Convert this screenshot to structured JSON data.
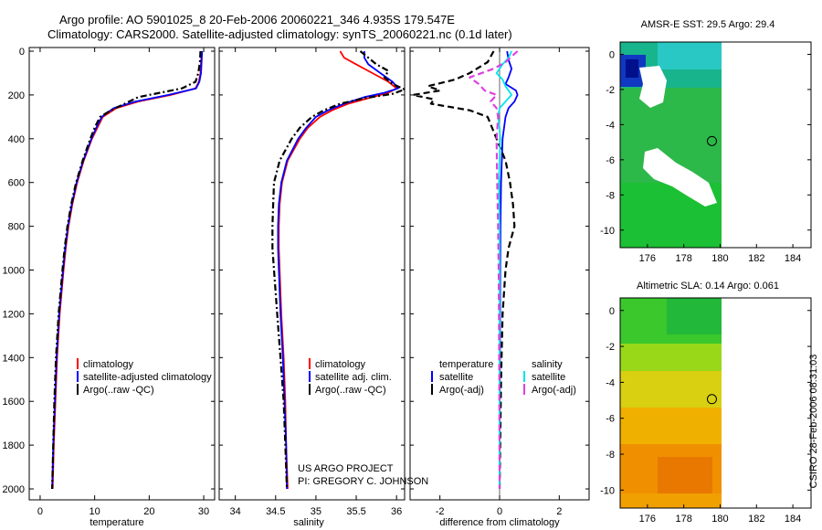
{
  "header": {
    "line1": "Argo profile: AO 5901025_8 20-Feb-2006 20060221_346 4.935S 179.547E",
    "line2": "Climatology: CARS2000. Satellite-adjusted climatology: synTS_20060221.nc (0.1d later)"
  },
  "credit": {
    "project": "US ARGO PROJECT",
    "pi": "PI: GREGORY C. JOHNSON",
    "stamp": "CSIRO 28-Feb-2006 08:31:03"
  },
  "colors": {
    "climatology": "#ff0000",
    "satellite": "#0000ff",
    "argo": "#000000",
    "sal_satellite": "#00e5ee",
    "sal_argo": "#e040e0"
  },
  "chart_data": [
    {
      "type": "line",
      "panel": "temperature",
      "xlabel": "temperature",
      "ylabel": "",
      "xlim": [
        -2,
        32
      ],
      "ylim": [
        2050,
        0
      ],
      "xticks": [
        0,
        10,
        20,
        30
      ],
      "yticks": [
        0,
        200,
        400,
        600,
        800,
        1000,
        1200,
        1400,
        1600,
        1800,
        2000
      ],
      "legend": [
        {
          "label": "climatology",
          "color": "#ff0000"
        },
        {
          "label": "satellite-adjusted climatology",
          "color": "#0000ff"
        },
        {
          "label": "Argo(..raw -QC)",
          "color": "#000000"
        }
      ],
      "series": [
        {
          "name": "climatology",
          "color": "#ff0000",
          "dash": "solid",
          "depth": [
            0,
            50,
            100,
            140,
            170,
            200,
            230,
            260,
            300,
            350,
            400,
            500,
            600,
            700,
            800,
            900,
            1000,
            1200,
            1400,
            1600,
            1800,
            2000
          ],
          "values": [
            29.6,
            29.5,
            29.4,
            29.1,
            28.5,
            24.0,
            18.0,
            14.0,
            11.5,
            10.5,
            9.5,
            8.0,
            6.8,
            5.9,
            5.2,
            4.7,
            4.3,
            3.6,
            3.1,
            2.8,
            2.5,
            2.3
          ]
        },
        {
          "name": "satellite-adjusted climatology",
          "color": "#0000ff",
          "dash": "solid",
          "depth": [
            0,
            50,
            100,
            140,
            170,
            200,
            230,
            260,
            300,
            350,
            400,
            500,
            600,
            700,
            800,
            900,
            1000,
            1200,
            1400,
            1600,
            1800,
            2000
          ],
          "values": [
            29.7,
            29.6,
            29.5,
            29.2,
            28.6,
            23.5,
            17.5,
            13.5,
            11.3,
            10.3,
            9.4,
            7.9,
            6.7,
            5.8,
            5.1,
            4.6,
            4.2,
            3.5,
            3.0,
            2.7,
            2.4,
            2.2
          ]
        },
        {
          "name": "Argo(..raw -QC)",
          "color": "#000000",
          "dash": "dashdot",
          "depth": [
            0,
            50,
            100,
            140,
            170,
            190,
            210,
            240,
            270,
            300,
            350,
            400,
            500,
            600,
            700,
            800,
            900,
            1000,
            1200,
            1400,
            1600,
            1800,
            2000
          ],
          "values": [
            29.4,
            29.3,
            29.0,
            28.5,
            26.0,
            22.0,
            18.0,
            15.5,
            13.0,
            11.0,
            10.0,
            9.2,
            7.8,
            6.6,
            5.7,
            5.0,
            4.5,
            4.1,
            3.4,
            2.9,
            2.6,
            2.4,
            2.2
          ]
        }
      ]
    },
    {
      "type": "line",
      "panel": "salinity",
      "xlabel": "salinity",
      "ylabel": "",
      "xlim": [
        33.8,
        36.1
      ],
      "ylim": [
        2050,
        0
      ],
      "xticks": [
        34,
        34.5,
        35,
        35.5,
        36
      ],
      "legend": [
        {
          "label": "climatology",
          "color": "#ff0000"
        },
        {
          "label": "satellite adj. clim.",
          "color": "#0000ff"
        },
        {
          "label": "Argo(..raw -QC)",
          "color": "#000000"
        }
      ],
      "series": [
        {
          "name": "climatology",
          "color": "#ff0000",
          "dash": "solid",
          "depth": [
            0,
            30,
            60,
            100,
            140,
            170,
            190,
            210,
            240,
            270,
            300,
            350,
            400,
            500,
            600,
            700,
            800,
            900,
            1000,
            1200,
            1400,
            1600,
            1800,
            2000
          ],
          "values": [
            35.3,
            35.35,
            35.5,
            35.7,
            35.9,
            36.0,
            35.9,
            35.7,
            35.4,
            35.2,
            35.05,
            34.9,
            34.8,
            34.65,
            34.58,
            34.55,
            34.54,
            34.54,
            34.55,
            34.57,
            34.6,
            34.62,
            34.63,
            34.65
          ]
        },
        {
          "name": "satellite adj. clim.",
          "color": "#0000ff",
          "dash": "solid",
          "depth": [
            0,
            30,
            60,
            100,
            140,
            170,
            190,
            210,
            240,
            270,
            300,
            350,
            400,
            500,
            600,
            700,
            800,
            900,
            1000,
            1200,
            1400,
            1600,
            1800,
            2000
          ],
          "values": [
            35.6,
            35.6,
            35.65,
            35.8,
            35.95,
            36.02,
            35.85,
            35.6,
            35.35,
            35.15,
            35.0,
            34.88,
            34.78,
            34.64,
            34.57,
            34.54,
            34.53,
            34.53,
            34.54,
            34.56,
            34.59,
            34.61,
            34.63,
            34.64
          ]
        },
        {
          "name": "Argo(..raw -QC)",
          "color": "#000000",
          "dash": "dashdot",
          "depth": [
            0,
            30,
            60,
            90,
            120,
            150,
            175,
            195,
            215,
            240,
            270,
            300,
            350,
            400,
            500,
            600,
            700,
            800,
            900,
            1000,
            1200,
            1400,
            1600,
            1800,
            2000
          ],
          "values": [
            35.55,
            35.65,
            35.75,
            35.9,
            35.85,
            35.95,
            36.1,
            35.95,
            35.6,
            35.3,
            35.1,
            34.95,
            34.8,
            34.7,
            34.55,
            34.48,
            34.47,
            34.46,
            34.46,
            34.48,
            34.52,
            34.56,
            34.6,
            34.62,
            34.64
          ]
        }
      ]
    },
    {
      "type": "line",
      "panel": "difference",
      "xlabel": "difference from climatology",
      "ylabel": "",
      "xlim": [
        -3,
        3
      ],
      "ylim": [
        2050,
        0
      ],
      "xticks": [
        -2,
        0,
        2
      ],
      "legend": [
        {
          "label": "temperature",
          "color": ""
        },
        {
          "label": "satellite",
          "color": "#0000ff"
        },
        {
          "label": "Argo(-adj)",
          "color": "#000000"
        },
        {
          "label": "salinity",
          "color": ""
        },
        {
          "label": "satellite",
          "color": "#00e5ee"
        },
        {
          "label": "Argo(-adj)",
          "color": "#e040e0"
        }
      ],
      "series": [
        {
          "name": "temperature satellite",
          "color": "#0000ff",
          "dash": "solid",
          "depth": [
            0,
            40,
            80,
            120,
            150,
            180,
            200,
            230,
            260,
            300,
            400,
            600,
            800,
            1000,
            1500,
            2000
          ],
          "values": [
            0.25,
            0.3,
            0.4,
            0.3,
            0.2,
            0.55,
            0.6,
            0.5,
            0.3,
            0.2,
            0.1,
            0.05,
            0.03,
            0.02,
            0.01,
            0.0
          ]
        },
        {
          "name": "temperature Argo(-adj)",
          "color": "#000000",
          "dash": "dash",
          "depth": [
            0,
            50,
            100,
            130,
            160,
            180,
            200,
            220,
            240,
            270,
            300,
            400,
            500,
            600,
            700,
            800,
            900,
            1000,
            1200,
            1500,
            2000
          ],
          "values": [
            -0.2,
            -0.4,
            -1.0,
            -1.5,
            -2.4,
            -2.0,
            -2.9,
            -2.2,
            -2.3,
            -1.0,
            -0.4,
            -0.1,
            0.2,
            0.35,
            0.45,
            0.5,
            0.3,
            0.2,
            0.1,
            0.05,
            0.0
          ]
        },
        {
          "name": "salinity satellite",
          "color": "#00e5ee",
          "dash": "solid",
          "depth": [
            0,
            30,
            60,
            100,
            130,
            160,
            200,
            230,
            260,
            300,
            350,
            400,
            500,
            600,
            800,
            1000,
            1500,
            2000
          ],
          "values": [
            0.4,
            0.3,
            0.1,
            -0.1,
            0.1,
            0.2,
            0.4,
            0.2,
            0.0,
            -0.05,
            0.0,
            0.02,
            0.0,
            -0.02,
            0.0,
            0.0,
            0.0,
            0.0
          ]
        },
        {
          "name": "salinity Argo(-adj)",
          "color": "#e040e0",
          "dash": "dash",
          "depth": [
            0,
            50,
            80,
            120,
            150,
            180,
            200,
            230,
            260,
            300,
            400,
            600,
            800,
            1000,
            1200,
            1500,
            2000
          ],
          "values": [
            0.6,
            0.2,
            -0.2,
            -1.0,
            -0.7,
            -0.5,
            -0.1,
            -0.3,
            -0.1,
            -0.05,
            -0.1,
            -0.08,
            -0.05,
            -0.03,
            -0.02,
            -0.01,
            0.0
          ]
        }
      ]
    },
    {
      "type": "heatmap",
      "panel": "amsr-sst",
      "title": "AMSR-E SST: 29.5 Argo: 29.4",
      "xlim": [
        174.5,
        185
      ],
      "ylim": [
        -11,
        0.7
      ],
      "xticks": [
        176,
        178,
        180,
        182,
        184
      ],
      "yticks": [
        0,
        -2,
        -4,
        -6,
        -8,
        -10
      ],
      "marker": {
        "lon": 179.547,
        "lat": -4.935
      },
      "data_extent_lon": [
        174.5,
        180
      ]
    },
    {
      "type": "heatmap",
      "panel": "altimetric-sla",
      "title": "Altimetric SLA: 0.14 Argo: 0.061",
      "xlim": [
        174.5,
        185
      ],
      "ylim": [
        -11,
        0.7
      ],
      "xticks": [
        176,
        178,
        180,
        182,
        184
      ],
      "yticks": [
        0,
        -2,
        -4,
        -6,
        -8,
        -10
      ],
      "marker": {
        "lon": 179.547,
        "lat": -4.935
      },
      "data_extent_lon": [
        174.5,
        180
      ]
    }
  ]
}
